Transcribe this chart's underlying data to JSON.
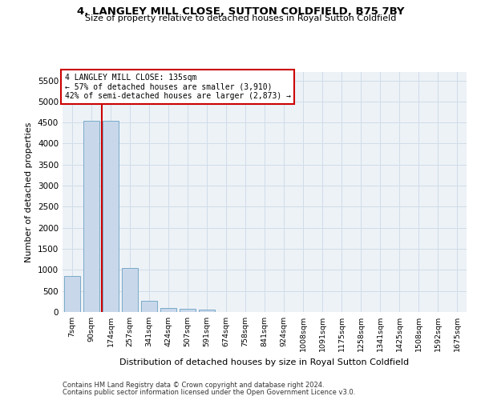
{
  "title": "4, LANGLEY MILL CLOSE, SUTTON COLDFIELD, B75 7BY",
  "subtitle": "Size of property relative to detached houses in Royal Sutton Coldfield",
  "xlabel": "Distribution of detached houses by size in Royal Sutton Coldfield",
  "ylabel": "Number of detached properties",
  "footnote1": "Contains HM Land Registry data © Crown copyright and database right 2024.",
  "footnote2": "Contains public sector information licensed under the Open Government Licence v3.0.",
  "bar_labels": [
    "7sqm",
    "90sqm",
    "174sqm",
    "257sqm",
    "341sqm",
    "424sqm",
    "507sqm",
    "591sqm",
    "674sqm",
    "758sqm",
    "841sqm",
    "924sqm",
    "1008sqm",
    "1091sqm",
    "1175sqm",
    "1258sqm",
    "1341sqm",
    "1425sqm",
    "1508sqm",
    "1592sqm",
    "1675sqm"
  ],
  "bar_values": [
    850,
    4550,
    4550,
    1050,
    270,
    90,
    80,
    50,
    0,
    0,
    0,
    0,
    0,
    0,
    0,
    0,
    0,
    0,
    0,
    0,
    0
  ],
  "bar_color": "#c8d8ea",
  "bar_edge_color": "#7aaac8",
  "ylim": [
    0,
    5700
  ],
  "yticks": [
    0,
    500,
    1000,
    1500,
    2000,
    2500,
    3000,
    3500,
    4000,
    4500,
    5000,
    5500
  ],
  "property_label": "4 LANGLEY MILL CLOSE: 135sqm",
  "annotation_line1": "← 57% of detached houses are smaller (3,910)",
  "annotation_line2": "42% of semi-detached houses are larger (2,873) →",
  "vline_color": "#cc0000",
  "annotation_box_color": "#cc0000",
  "grid_color": "#d0dce8",
  "background_color": "#edf2f7"
}
